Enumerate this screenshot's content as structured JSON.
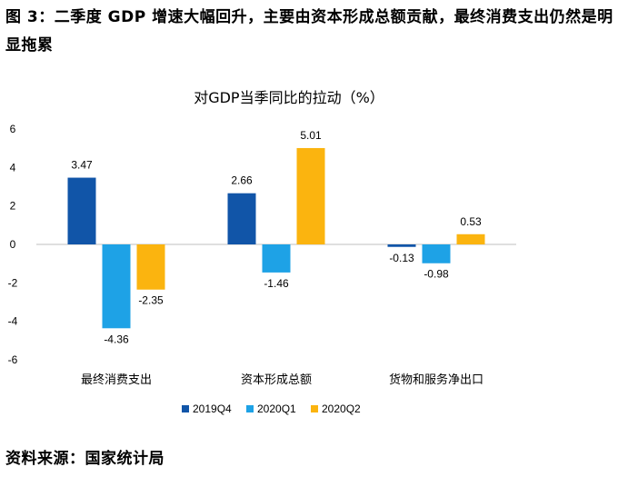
{
  "figure_title": "图 3：二季度 GDP 增速大幅回升，主要由资本形成总额贡献，最终消费支出仍然是明显拖累",
  "source_note": "资料来源：国家统计局",
  "chart_data": {
    "type": "bar",
    "title": "对GDP当季同比的拉动（%）",
    "categories": [
      "最终消费支出",
      "资本形成总额",
      "货物和服务净出口"
    ],
    "series": [
      {
        "name": "2019Q4",
        "color": "#1155a8",
        "values": [
          3.47,
          2.66,
          -0.13
        ]
      },
      {
        "name": "2020Q1",
        "color": "#1ea2e6",
        "values": [
          -4.36,
          -1.46,
          -0.98
        ]
      },
      {
        "name": "2020Q2",
        "color": "#fbb40f",
        "values": [
          -2.35,
          5.01,
          0.53
        ]
      }
    ],
    "ylim": [
      -6,
      6
    ],
    "yticks": [
      6,
      4,
      2,
      0,
      -2,
      -4,
      -6
    ],
    "xlabel": "",
    "ylabel": "",
    "legend": "bottom"
  }
}
